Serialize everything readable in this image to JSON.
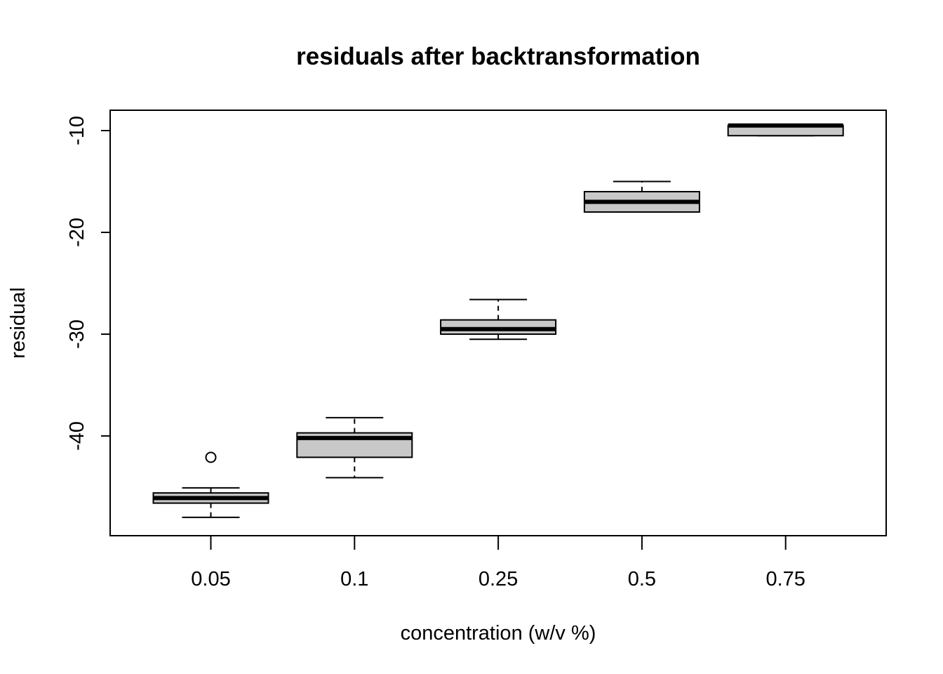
{
  "chart_data": {
    "type": "boxplot",
    "title": "residuals after backtransformation",
    "xlabel": "concentration (w/v %)",
    "ylabel": "residual",
    "categories": [
      "0.05",
      "0.1",
      "0.25",
      "0.5",
      "0.75"
    ],
    "ylim": [
      -49.8,
      -8.0
    ],
    "yticks": [
      -10,
      -20,
      -30,
      -40
    ],
    "ytick_labels": [
      "-10",
      "-20",
      "-30",
      "-40"
    ],
    "boxes": [
      {
        "category": "0.05",
        "whisker_low": -48.0,
        "q1": -46.6,
        "median": -46.1,
        "q3": -45.6,
        "whisker_high": -45.1,
        "outliers": [
          -42.1
        ]
      },
      {
        "category": "0.1",
        "whisker_low": -44.1,
        "q1": -42.1,
        "median": -40.2,
        "q3": -39.7,
        "whisker_high": -38.2,
        "outliers": []
      },
      {
        "category": "0.25",
        "whisker_low": -30.5,
        "q1": -30.0,
        "median": -29.5,
        "q3": -28.6,
        "whisker_high": -26.6,
        "outliers": []
      },
      {
        "category": "0.5",
        "whisker_low": -18.0,
        "q1": -18.0,
        "median": -17.0,
        "q3": -16.0,
        "whisker_high": -15.0,
        "outliers": []
      },
      {
        "category": "0.75",
        "whisker_low": -10.5,
        "q1": -10.5,
        "median": -9.5,
        "q3": -9.5,
        "whisker_high": -9.5,
        "outliers": []
      }
    ],
    "box_fill": "#c8c8c8",
    "grid": false
  }
}
